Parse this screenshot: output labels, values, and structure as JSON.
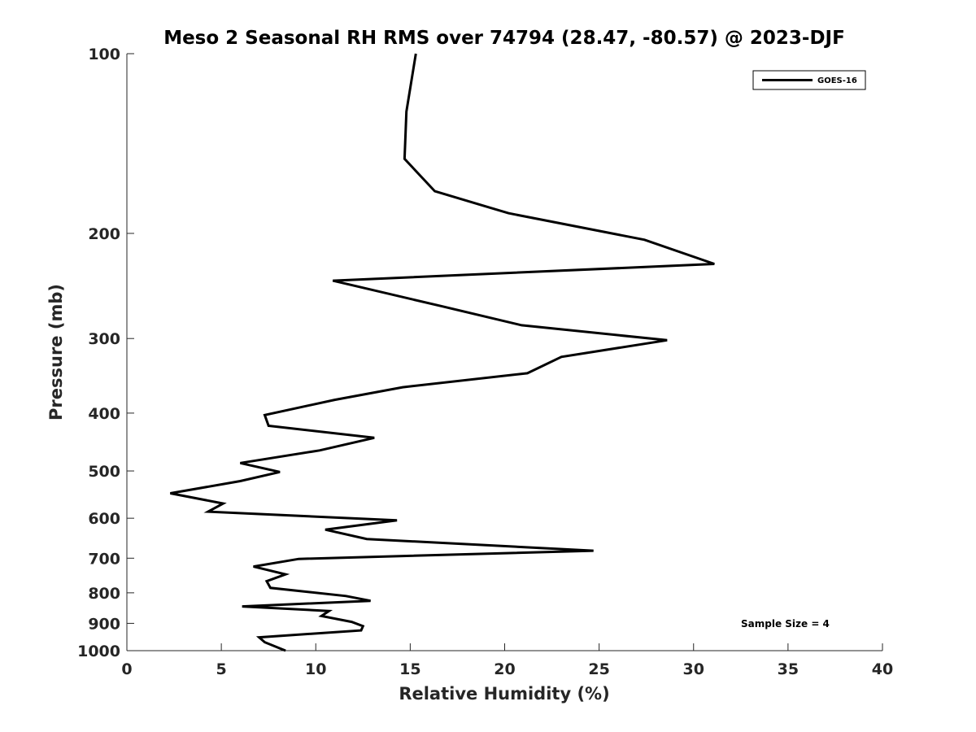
{
  "chart_data": {
    "type": "line",
    "title": "Meso 2 Seasonal RH RMS over 74794 (28.47, -80.57) @ 2023-DJF",
    "xlabel": "Relative Humidity (%)",
    "ylabel": "Pressure (mb)",
    "xlim": [
      0,
      40
    ],
    "ylim": [
      100,
      1000
    ],
    "y_scale": "log",
    "y_reversed": true,
    "x_ticks": [
      "0",
      "5",
      "10",
      "15",
      "20",
      "25",
      "30",
      "35",
      "40"
    ],
    "y_ticks": [
      "100",
      "200",
      "300",
      "400",
      "500",
      "600",
      "700",
      "800",
      "900",
      "1000"
    ],
    "grid": false,
    "legend_position": "top-right",
    "line_color": "#000000",
    "annotation": "Sample Size = 4",
    "series": [
      {
        "name": "GOES-16",
        "x": [
          15.3,
          14.8,
          14.7,
          16.3,
          20.2,
          27.4,
          31.1,
          10.9,
          16.7,
          20.9,
          28.6,
          23.0,
          21.2,
          14.6,
          11.0,
          7.3,
          7.5,
          13.1,
          10.2,
          6.0,
          8.1,
          6.0,
          2.3,
          5.1,
          4.3,
          14.3,
          10.5,
          12.7,
          24.7,
          9.1,
          6.7,
          8.4,
          7.4,
          7.6,
          11.6,
          12.9,
          6.1,
          10.7,
          10.3,
          11.9,
          12.5,
          12.4,
          7.0,
          7.3,
          8.4
        ],
        "y": [
          100,
          125,
          150,
          170,
          185,
          205,
          225,
          240,
          265,
          285,
          302,
          322,
          343,
          362,
          380,
          403,
          420,
          440,
          462,
          485,
          502,
          520,
          545,
          567,
          585,
          605,
          627,
          650,
          680,
          702,
          723,
          745,
          765,
          785,
          810,
          825,
          843,
          858,
          875,
          895,
          910,
          925,
          950,
          968,
          1000
        ]
      }
    ]
  }
}
